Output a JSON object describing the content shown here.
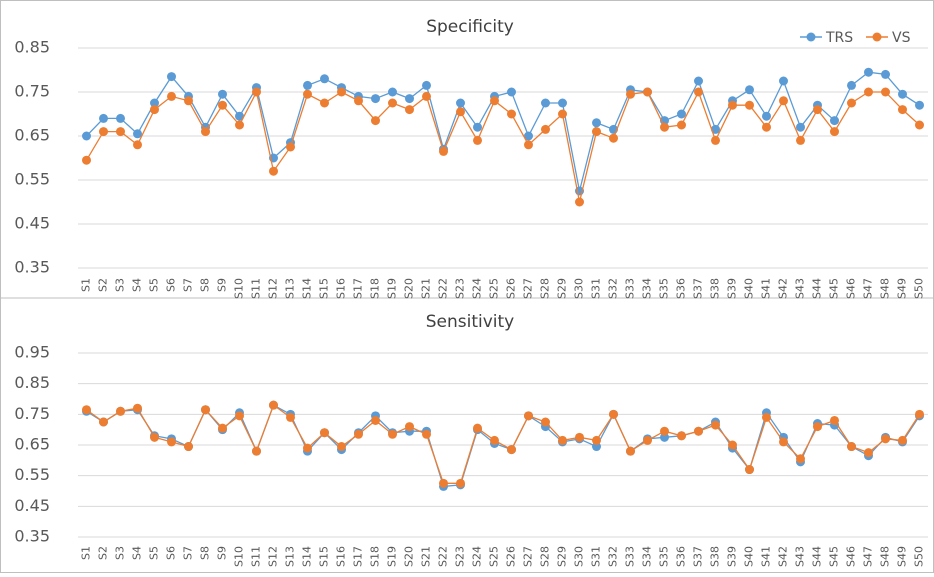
{
  "chart_data": [
    {
      "type": "line",
      "title": "Specificity",
      "categories": [
        "S1",
        "S2",
        "S3",
        "S4",
        "S5",
        "S6",
        "S7",
        "S8",
        "S9",
        "S10",
        "S11",
        "S12",
        "S13",
        "S14",
        "S15",
        "S16",
        "S17",
        "S18",
        "S19",
        "S20",
        "S21",
        "S22",
        "S23",
        "S24",
        "S25",
        "S26",
        "S27",
        "S28",
        "S29",
        "S30",
        "S31",
        "S32",
        "S33",
        "S34",
        "S35",
        "S36",
        "S37",
        "S38",
        "S39",
        "S40",
        "S41",
        "S42",
        "S43",
        "S44",
        "S45",
        "S46",
        "S47",
        "S48",
        "S49",
        "S50"
      ],
      "series": [
        {
          "name": "TRS",
          "color": "#5b9bd5",
          "values": [
            0.65,
            0.69,
            0.69,
            0.655,
            0.725,
            0.785,
            0.74,
            0.67,
            0.745,
            0.695,
            0.76,
            0.6,
            0.635,
            0.765,
            0.78,
            0.76,
            0.74,
            0.735,
            0.75,
            0.735,
            0.765,
            0.62,
            0.725,
            0.67,
            0.74,
            0.75,
            0.65,
            0.725,
            0.725,
            0.525,
            0.68,
            0.665,
            0.755,
            0.75,
            0.685,
            0.7,
            0.775,
            0.665,
            0.73,
            0.755,
            0.695,
            0.775,
            0.67,
            0.72,
            0.685,
            0.765,
            0.795,
            0.79,
            0.745,
            0.72
          ]
        },
        {
          "name": "VS",
          "color": "#ed7d31",
          "values": [
            0.595,
            0.66,
            0.66,
            0.63,
            0.71,
            0.74,
            0.73,
            0.66,
            0.72,
            0.675,
            0.75,
            0.57,
            0.625,
            0.745,
            0.725,
            0.75,
            0.73,
            0.685,
            0.725,
            0.71,
            0.74,
            0.615,
            0.705,
            0.64,
            0.73,
            0.7,
            0.63,
            0.665,
            0.7,
            0.5,
            0.66,
            0.645,
            0.745,
            0.75,
            0.67,
            0.675,
            0.75,
            0.64,
            0.72,
            0.72,
            0.67,
            0.73,
            0.64,
            0.71,
            0.66,
            0.725,
            0.75,
            0.75,
            0.71,
            0.675
          ]
        }
      ],
      "ylim": [
        0.35,
        0.85
      ],
      "yticks": [
        0.35,
        0.45,
        0.55,
        0.65,
        0.75,
        0.85
      ],
      "grid": true,
      "legend": "upper right"
    },
    {
      "type": "line",
      "title": "Sensitivity",
      "categories": [
        "S1",
        "S2",
        "S3",
        "S4",
        "S5",
        "S6",
        "S7",
        "S8",
        "S9",
        "S10",
        "S11",
        "S12",
        "S13",
        "S14",
        "S15",
        "S16",
        "S17",
        "S18",
        "S19",
        "S20",
        "S21",
        "S22",
        "S23",
        "S24",
        "S25",
        "S26",
        "S27",
        "S28",
        "S29",
        "S30",
        "S31",
        "S32",
        "S33",
        "S34",
        "S35",
        "S36",
        "S37",
        "S38",
        "S39",
        "S40",
        "S41",
        "S42",
        "S43",
        "S44",
        "S45",
        "S46",
        "S47",
        "S48",
        "S49",
        "S50"
      ],
      "series": [
        {
          "name": "TRS",
          "color": "#5b9bd5",
          "values": [
            0.76,
            0.725,
            0.76,
            0.765,
            0.68,
            0.67,
            0.645,
            0.765,
            0.7,
            0.755,
            0.63,
            0.78,
            0.75,
            0.63,
            0.69,
            0.635,
            0.69,
            0.745,
            0.69,
            0.695,
            0.695,
            0.515,
            0.52,
            0.7,
            0.655,
            0.635,
            0.745,
            0.71,
            0.66,
            0.67,
            0.645,
            0.75,
            0.63,
            0.67,
            0.675,
            0.68,
            0.695,
            0.725,
            0.64,
            0.57,
            0.755,
            0.675,
            0.595,
            0.72,
            0.715,
            0.645,
            0.615,
            0.675,
            0.66,
            0.745
          ]
        },
        {
          "name": "VS",
          "color": "#ed7d31",
          "values": [
            0.765,
            0.725,
            0.76,
            0.77,
            0.675,
            0.66,
            0.645,
            0.765,
            0.705,
            0.745,
            0.63,
            0.78,
            0.74,
            0.64,
            0.69,
            0.645,
            0.685,
            0.73,
            0.685,
            0.71,
            0.685,
            0.525,
            0.525,
            0.705,
            0.665,
            0.635,
            0.745,
            0.725,
            0.665,
            0.675,
            0.665,
            0.75,
            0.63,
            0.665,
            0.695,
            0.68,
            0.695,
            0.715,
            0.65,
            0.57,
            0.74,
            0.66,
            0.605,
            0.71,
            0.73,
            0.645,
            0.625,
            0.67,
            0.665,
            0.75
          ]
        }
      ],
      "ylim": [
        0.35,
        0.95
      ],
      "yticks": [
        0.35,
        0.45,
        0.55,
        0.65,
        0.75,
        0.85,
        0.95
      ],
      "grid": true,
      "legend": "none"
    }
  ]
}
